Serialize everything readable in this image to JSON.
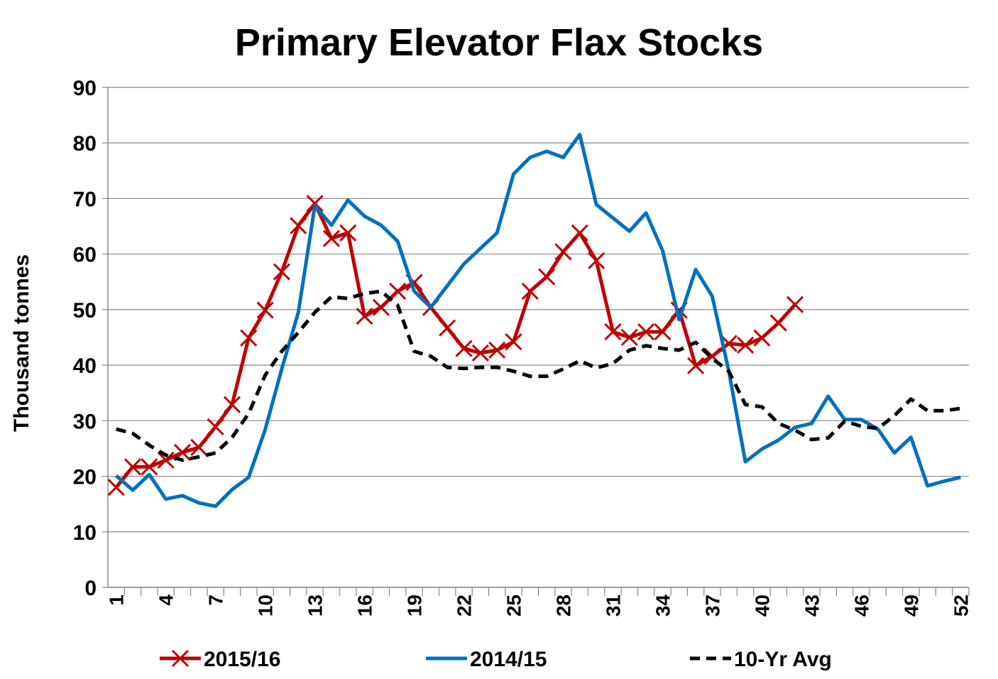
{
  "chart_data": {
    "type": "line",
    "title": "Primary Elevator Flax Stocks",
    "y_label": "Thousand tonnes",
    "categories": [
      "1",
      null,
      null,
      "4",
      null,
      null,
      "7",
      null,
      null,
      "10",
      null,
      null,
      "13",
      null,
      null,
      "16",
      null,
      null,
      "19",
      null,
      null,
      "22",
      null,
      null,
      "25",
      null,
      null,
      "28",
      null,
      null,
      "31",
      null,
      null,
      "34",
      null,
      null,
      "37",
      null,
      null,
      "40",
      null,
      null,
      "43",
      null,
      null,
      "46",
      null,
      null,
      "49",
      null,
      null,
      "52"
    ],
    "ylim": [
      0,
      90
    ],
    "yticks": [
      0,
      10,
      20,
      30,
      40,
      50,
      60,
      70,
      80,
      90
    ],
    "grid": true,
    "legend": "bottom",
    "series": [
      {
        "name": "2015/16",
        "color": "#c00000",
        "marker": "x",
        "dashed": false,
        "values": [
          18.0,
          21.7,
          21.7,
          22.9,
          24.3,
          25.2,
          28.9,
          32.9,
          44.9,
          49.9,
          56.8,
          65.1,
          69.1,
          62.8,
          63.8,
          48.8,
          50.4,
          53.3,
          54.9,
          50.4,
          46.7,
          43.0,
          42.2,
          42.7,
          44.2,
          53.3,
          55.9,
          60.4,
          63.8,
          58.8,
          46.0,
          45.0,
          46.0,
          46.0,
          49.9,
          39.9,
          41.6,
          43.9,
          43.6,
          44.9,
          47.6,
          50.9,
          null,
          null,
          null,
          null,
          null,
          null,
          null,
          null,
          null,
          null
        ]
      },
      {
        "name": "2014/15",
        "color": "#0070c0",
        "marker": null,
        "dashed": false,
        "values": [
          20.1,
          17.5,
          20.3,
          15.9,
          16.5,
          15.2,
          14.6,
          17.6,
          19.8,
          28.4,
          39.3,
          49.5,
          68.7,
          65.2,
          69.7,
          66.8,
          65.2,
          62.3,
          53.3,
          50.4,
          54.3,
          58.2,
          61.0,
          63.8,
          74.4,
          77.4,
          78.5,
          77.4,
          81.5,
          68.9,
          66.5,
          64.1,
          67.4,
          60.6,
          48.2,
          57.2,
          52.4,
          38.9,
          22.6,
          24.9,
          26.5,
          28.8,
          29.5,
          34.4,
          30.2,
          30.2,
          28.5,
          24.2,
          27.0,
          18.3,
          19.1,
          19.8
        ]
      },
      {
        "name": "10-Yr Avg",
        "color": "#000000",
        "marker": null,
        "dashed": true,
        "values": [
          28.5,
          27.7,
          25.6,
          23.8,
          22.9,
          23.5,
          24.2,
          27.0,
          31.3,
          38.2,
          42.5,
          45.9,
          49.5,
          52.3,
          52.0,
          52.9,
          53.3,
          50.8,
          42.5,
          41.6,
          39.6,
          39.4,
          39.6,
          39.6,
          38.9,
          38.0,
          38.0,
          39.3,
          40.8,
          39.5,
          40.3,
          42.7,
          43.5,
          43.0,
          42.7,
          44.1,
          41.2,
          38.9,
          32.9,
          32.5,
          29.5,
          28.3,
          26.6,
          26.9,
          29.9,
          29.0,
          28.6,
          30.9,
          33.9,
          31.8,
          31.8,
          32.2
        ]
      }
    ]
  }
}
